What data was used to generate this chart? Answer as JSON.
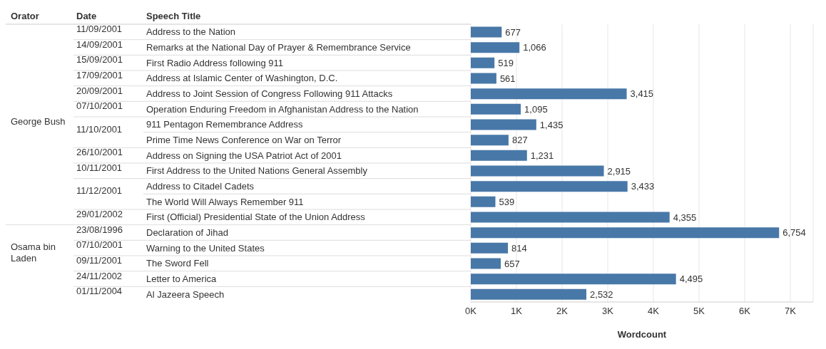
{
  "chart_data": {
    "type": "bar",
    "orientation": "horizontal",
    "xlabel": "Wordcount",
    "ylabel": "Speech Title",
    "categories": [
      "Address to the Nation",
      "Remarks at the National Day of Prayer & Remembrance Service",
      "First Radio Address following 911",
      "Address at Islamic Center of Washington, D.C.",
      "Address to Joint Session of Congress Following 911 Attacks",
      "Operation Enduring Freedom in Afghanistan Address to the Nation",
      "911 Pentagon Remembrance Address",
      "Prime Time News Conference on War on Terror",
      "Address on Signing the USA Patriot Act of 2001",
      "First Address to the United Nations General Assembly",
      "Address to Citadel Cadets",
      "The World Will Always Remember 911",
      "First (Official) Presidential State of the Union Address",
      "Declaration of Jihad",
      "Warning to the United States",
      "The Sword Fell",
      "Letter to America",
      "Al Jazeera Speech"
    ],
    "values": [
      677,
      1066,
      519,
      561,
      3415,
      1095,
      1435,
      827,
      1231,
      2915,
      3433,
      539,
      4355,
      6754,
      814,
      657,
      4495,
      2532
    ],
    "value_labels": [
      "677",
      "1,066",
      "519",
      "561",
      "3,415",
      "1,095",
      "1,435",
      "827",
      "1,231",
      "2,915",
      "3,433",
      "539",
      "4,355",
      "6,754",
      "814",
      "657",
      "4,495",
      "2,532"
    ],
    "color": "#4878a8",
    "grid": "x",
    "xlim": [
      0,
      7500
    ],
    "xticks": [
      {
        "value": 0,
        "label": "0K"
      },
      {
        "value": 1000,
        "label": "1K"
      },
      {
        "value": 2000,
        "label": "2K"
      },
      {
        "value": 3000,
        "label": "3K"
      },
      {
        "value": 4000,
        "label": "4K"
      },
      {
        "value": 5000,
        "label": "5K"
      },
      {
        "value": 6000,
        "label": "6K"
      },
      {
        "value": 7000,
        "label": "7K"
      }
    ],
    "annotations": [
      "Orator",
      "George Bush",
      "Osama bin Laden",
      "Date",
      "11/09/2001",
      "14/09/2001",
      "15/09/2001",
      "17/09/2001",
      "20/09/2001",
      "07/10/2001",
      "11/10/2001",
      "26/10/2001",
      "10/11/2001",
      "11/12/2001",
      "29/01/2002",
      "23/08/1996",
      "07/10/2001",
      "09/11/2001",
      "24/11/2002",
      "01/11/2004"
    ]
  }
}
